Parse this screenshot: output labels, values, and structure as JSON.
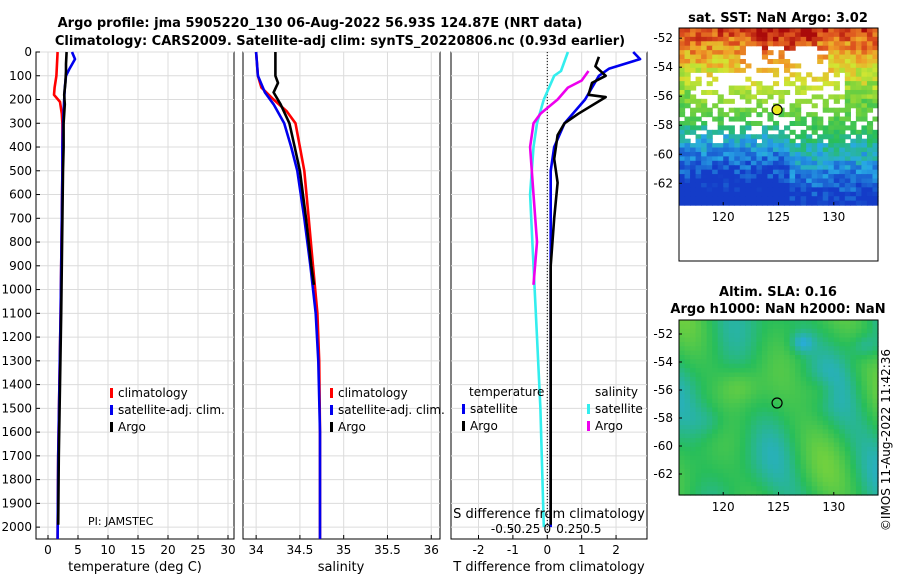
{
  "header": {
    "title_line1": "Argo profile: jma 5905220_130 06-Aug-2022 56.93S 124.87E (NRT data)",
    "title_line2": "Climatology: CARS2009. Satellite-adj clim: synTS_20220806.nc (0.93d earlier)"
  },
  "colors": {
    "red": "#ff0000",
    "blue": "#0000ee",
    "black": "#000000",
    "cyan": "#33eeee",
    "magenta": "#ee00ee"
  },
  "legend": {
    "climatology": "climatology",
    "satellite_adj": "satellite-adj. clim.",
    "argo": "Argo",
    "temperature": "temperature",
    "salinity": "salinity",
    "satellite": "satellite"
  },
  "pi_label": "PI: JAMSTEC",
  "footer_stamp": "©IMOS 11-Aug-2022 11:42:36",
  "map_sst": {
    "title": "sat. SST: NaN Argo: 3.02",
    "argo_lon": 124.87,
    "argo_lat": -56.93
  },
  "map_sla": {
    "title_line1": "Altim. SLA: 0.16",
    "title_line2": "Argo h1000: NaN h2000: NaN",
    "argo_lon": 124.87,
    "argo_lat": -56.93
  },
  "chart_data": [
    {
      "type": "line",
      "id": "temperature",
      "xlabel": "temperature (deg C)",
      "ylabel": "",
      "xlim": [
        -2,
        31
      ],
      "ylim": [
        2050,
        0
      ],
      "x_ticks": [
        0,
        5,
        10,
        15,
        20,
        25,
        30
      ],
      "y_ticks": [
        0,
        100,
        200,
        300,
        400,
        500,
        600,
        700,
        800,
        900,
        1000,
        1100,
        1200,
        1300,
        1400,
        1500,
        1600,
        1700,
        1800,
        1900,
        2000
      ],
      "series": [
        {
          "name": "climatology",
          "color": "red",
          "points": [
            [
              1.6,
              0
            ],
            [
              1.5,
              50
            ],
            [
              1.4,
              100
            ],
            [
              1.1,
              150
            ],
            [
              1.0,
              180
            ],
            [
              2.0,
              210
            ],
            [
              2.3,
              260
            ],
            [
              2.4,
              300
            ],
            [
              2.4,
              400
            ],
            [
              2.4,
              500
            ],
            [
              2.3,
              700
            ],
            [
              2.2,
              900
            ],
            [
              2.1,
              1100
            ],
            [
              1.9,
              1400
            ],
            [
              1.7,
              1700
            ],
            [
              1.6,
              2050
            ]
          ]
        },
        {
          "name": "satellite-adj. clim.",
          "color": "blue",
          "points": [
            [
              4.0,
              0
            ],
            [
              4.5,
              30
            ],
            [
              3.6,
              70
            ],
            [
              3.0,
              100
            ],
            [
              2.8,
              150
            ],
            [
              2.7,
              200
            ],
            [
              2.5,
              300
            ],
            [
              2.4,
              400
            ],
            [
              2.4,
              500
            ],
            [
              2.3,
              700
            ],
            [
              2.2,
              900
            ],
            [
              2.1,
              1100
            ],
            [
              1.9,
              1400
            ],
            [
              1.7,
              1700
            ],
            [
              1.6,
              2050
            ]
          ]
        },
        {
          "name": "Argo",
          "color": "black",
          "points": [
            [
              3.1,
              0
            ],
            [
              3.0,
              50
            ],
            [
              3.0,
              80
            ],
            [
              2.9,
              130
            ],
            [
              2.7,
              180
            ],
            [
              2.8,
              220
            ],
            [
              2.7,
              260
            ],
            [
              2.6,
              300
            ],
            [
              2.6,
              400
            ],
            [
              2.5,
              500
            ],
            [
              2.4,
              700
            ],
            [
              2.3,
              900
            ],
            [
              2.2,
              1100
            ],
            [
              2.0,
              1400
            ],
            [
              1.8,
              1700
            ],
            [
              1.7,
              1990
            ]
          ]
        }
      ]
    },
    {
      "type": "line",
      "id": "salinity",
      "xlabel": "salinity",
      "ylabel": "",
      "xlim": [
        33.85,
        36.1
      ],
      "ylim": [
        2050,
        0
      ],
      "x_ticks": [
        34,
        34.5,
        35,
        35.5,
        36
      ],
      "x_tick_labels": [
        "34",
        "34.5",
        "35",
        "35.5",
        "36"
      ],
      "series": [
        {
          "name": "climatology",
          "color": "red",
          "points": [
            [
              34.0,
              0
            ],
            [
              34.02,
              100
            ],
            [
              34.06,
              150
            ],
            [
              34.2,
              200
            ],
            [
              34.35,
              250
            ],
            [
              34.45,
              300
            ],
            [
              34.5,
              400
            ],
            [
              34.55,
              500
            ],
            [
              34.6,
              700
            ],
            [
              34.65,
              900
            ],
            [
              34.7,
              1100
            ],
            [
              34.72,
              1300
            ],
            [
              34.73,
              1600
            ],
            [
              34.73,
              2050
            ]
          ]
        },
        {
          "name": "satellite-adj. clim.",
          "color": "blue",
          "points": [
            [
              34.0,
              0
            ],
            [
              34.02,
              100
            ],
            [
              34.1,
              170
            ],
            [
              34.2,
              220
            ],
            [
              34.32,
              300
            ],
            [
              34.4,
              400
            ],
            [
              34.47,
              500
            ],
            [
              34.55,
              700
            ],
            [
              34.62,
              900
            ],
            [
              34.68,
              1100
            ],
            [
              34.71,
              1300
            ],
            [
              34.73,
              1600
            ],
            [
              34.73,
              2050
            ]
          ]
        },
        {
          "name": "Argo",
          "color": "black",
          "points": [
            [
              34.22,
              0
            ],
            [
              34.22,
              60
            ],
            [
              34.22,
              100
            ],
            [
              34.25,
              130
            ],
            [
              34.2,
              170
            ],
            [
              34.28,
              220
            ],
            [
              34.38,
              300
            ],
            [
              34.44,
              400
            ],
            [
              34.5,
              500
            ],
            [
              34.57,
              700
            ],
            [
              34.63,
              900
            ],
            [
              34.66,
              980
            ]
          ]
        }
      ]
    },
    {
      "type": "line",
      "id": "difference",
      "xlabel": "T difference from climatology",
      "x2label": "S difference from climatology",
      "xlim": [
        -2.8,
        2.9
      ],
      "ylim": [
        2050,
        0
      ],
      "x_ticks": [
        -2,
        -1,
        0,
        1,
        2
      ],
      "x2_ticks": [
        -0.5,
        -0.25,
        0,
        0.25,
        0.5
      ],
      "x2_tick_labels": [
        "-0.5",
        "-0.25",
        "0",
        "0.25",
        "0.5"
      ],
      "series": [
        {
          "name": "temperature satellite",
          "color": "blue",
          "points": [
            [
              2.5,
              0
            ],
            [
              2.7,
              30
            ],
            [
              1.8,
              70
            ],
            [
              1.5,
              100
            ],
            [
              1.3,
              150
            ],
            [
              1.1,
              200
            ],
            [
              0.5,
              300
            ],
            [
              0.2,
              400
            ],
            [
              0.1,
              500
            ],
            [
              0.1,
              700
            ],
            [
              0.1,
              1000
            ],
            [
              0.1,
              1400
            ],
            [
              0.1,
              1700
            ],
            [
              0.1,
              2000
            ]
          ]
        },
        {
          "name": "temperature Argo",
          "color": "black",
          "points": [
            [
              1.5,
              20
            ],
            [
              1.4,
              60
            ],
            [
              1.7,
              100
            ],
            [
              1.3,
              130
            ],
            [
              1.2,
              180
            ],
            [
              1.7,
              190
            ],
            [
              0.9,
              260
            ],
            [
              0.5,
              300
            ],
            [
              0.3,
              350
            ],
            [
              0.2,
              450
            ],
            [
              0.3,
              550
            ],
            [
              0.2,
              700
            ],
            [
              0.1,
              900
            ],
            [
              0.1,
              1200
            ],
            [
              0.1,
              1500
            ],
            [
              0.1,
              1990
            ]
          ]
        },
        {
          "name": "salinity satellite",
          "color": "cyan",
          "points": [
            [
              0.6,
              0
            ],
            [
              0.4,
              80
            ],
            [
              0.2,
              100
            ],
            [
              -0.1,
              200
            ],
            [
              -0.3,
              300
            ],
            [
              -0.4,
              400
            ],
            [
              -0.5,
              600
            ],
            [
              -0.4,
              900
            ],
            [
              -0.3,
              1200
            ],
            [
              -0.2,
              1500
            ],
            [
              -0.1,
              2000
            ]
          ]
        },
        {
          "name": "salinity Argo",
          "color": "magenta",
          "points": [
            [
              1.2,
              80
            ],
            [
              1.0,
              120
            ],
            [
              0.6,
              150
            ],
            [
              0.3,
              200
            ],
            [
              -0.2,
              260
            ],
            [
              -0.4,
              300
            ],
            [
              -0.5,
              400
            ],
            [
              -0.4,
              600
            ],
            [
              -0.3,
              800
            ],
            [
              -0.4,
              980
            ]
          ]
        }
      ]
    },
    {
      "type": "heatmap",
      "id": "sst_map",
      "title": "sat. SST: NaN Argo: 3.02",
      "xlim": [
        116,
        134
      ],
      "ylim": [
        -63.5,
        -51.3
      ],
      "x_ticks": [
        120,
        125,
        130
      ],
      "y_ticks": [
        -52,
        -54,
        -56,
        -58,
        -60,
        -62
      ],
      "point": [
        124.87,
        -56.93
      ]
    },
    {
      "type": "heatmap",
      "id": "sla_map",
      "title": "Altim. SLA: 0.16",
      "xlim": [
        116,
        134
      ],
      "ylim": [
        -63.5,
        -51.0
      ],
      "x_ticks": [
        120,
        125,
        130
      ],
      "y_ticks": [
        -52,
        -54,
        -56,
        -58,
        -60,
        -62
      ],
      "point": [
        124.87,
        -56.93
      ]
    }
  ]
}
